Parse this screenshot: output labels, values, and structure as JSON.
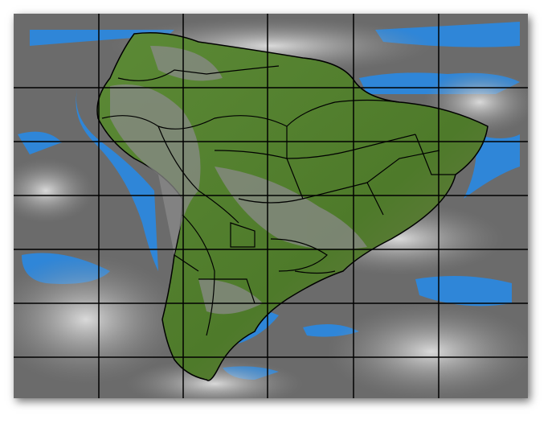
{
  "map": {
    "type": "satellite-infrared-composite",
    "region": "South America",
    "colors": {
      "ocean_clear": "#2f86d8",
      "land_vegetation": "#4f7a2c",
      "cloud": "#d8d8d8",
      "background": "#6e6e6e",
      "borders": "#000000",
      "grid": "#000000"
    },
    "grid": {
      "vertical_lines": 5,
      "horizontal_lines": 6
    }
  }
}
